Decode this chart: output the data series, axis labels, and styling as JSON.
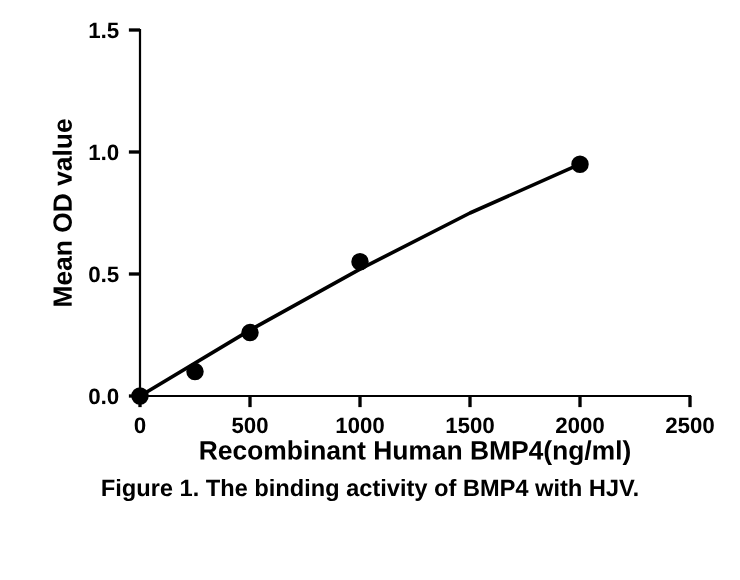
{
  "chart_data": {
    "type": "scatter",
    "xlabel": "Recombinant Human BMP4(ng/ml)",
    "ylabel": "Mean OD value",
    "annotations": [
      "Figure 1. The binding activity of BMP4 with HJV."
    ],
    "series": [
      {
        "color": "#000000",
        "marker": "circle",
        "x": [
          0,
          250,
          500,
          1000,
          2000
        ],
        "values": [
          0,
          0.1,
          0.26,
          0.55,
          0.95
        ]
      },
      {
        "type": "line",
        "color": "#000000",
        "marker": "none",
        "line_style": "solid",
        "x": [
          0,
          500,
          1000,
          1500,
          2000
        ],
        "values": [
          0,
          0.27,
          0.52,
          0.75,
          0.95
        ]
      }
    ],
    "xlim": [
      0,
      2500
    ],
    "xticks": [
      0,
      500,
      1000,
      1500,
      2000,
      2500
    ],
    "ylim": [
      0,
      1.5
    ],
    "yticks": [
      {
        "value": 0,
        "label": "0.0"
      },
      {
        "value": 0.5,
        "label": "0.5"
      },
      {
        "value": 1.0,
        "label": "1.0"
      },
      {
        "value": 1.5,
        "label": "1.5"
      }
    ],
    "grid": false,
    "legend": false
  }
}
